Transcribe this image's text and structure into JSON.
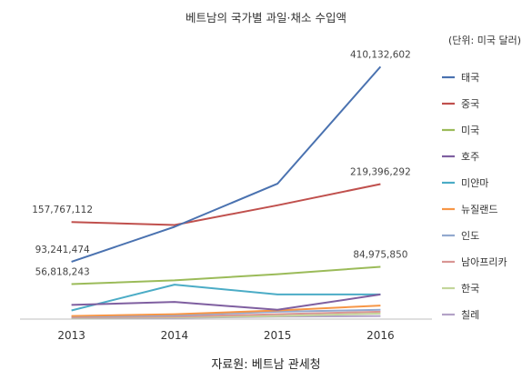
{
  "title": "베트남의 국가별 과일·채소 수입액",
  "unit_label": "(단위: 미국 달러)",
  "source_label": "자료원: 베트남 관세청",
  "chart_data": {
    "type": "line",
    "x": [
      "2013",
      "2014",
      "2015",
      "2016"
    ],
    "ylim": [
      0,
      430000000
    ],
    "grid": false,
    "legend_position": "right",
    "series": [
      {
        "name": "태국",
        "color": "#4a72b0",
        "values": [
          93241474,
          150000000,
          220000000,
          410132602
        ],
        "labels": [
          "93,241,474",
          null,
          null,
          "410,132,602"
        ]
      },
      {
        "name": "중국",
        "color": "#c0504d",
        "values": [
          157767112,
          153000000,
          185000000,
          219396292
        ],
        "labels": [
          "157,767,112",
          null,
          null,
          "219,396,292"
        ]
      },
      {
        "name": "미국",
        "color": "#9bbb59",
        "values": [
          56818243,
          63000000,
          73000000,
          84975850
        ],
        "labels": [
          "56,818,243",
          null,
          null,
          "84,975,850"
        ]
      },
      {
        "name": "호주",
        "color": "#7f5fa0",
        "values": [
          23000000,
          28000000,
          15000000,
          40000000
        ],
        "labels": [
          null,
          null,
          null,
          null
        ]
      },
      {
        "name": "미얀마",
        "color": "#4bacc6",
        "values": [
          14000000,
          56000000,
          40000000,
          40000000
        ],
        "labels": [
          null,
          null,
          null,
          null
        ]
      },
      {
        "name": "뉴질랜드",
        "color": "#f79646",
        "values": [
          5000000,
          8000000,
          14000000,
          22000000
        ],
        "labels": [
          null,
          null,
          null,
          null
        ]
      },
      {
        "name": "인도",
        "color": "#92a9cf",
        "values": [
          4000000,
          6000000,
          12000000,
          15000000
        ],
        "labels": [
          null,
          null,
          null,
          null
        ]
      },
      {
        "name": "남아프리카",
        "color": "#d99694",
        "values": [
          3000000,
          4000000,
          8000000,
          12000000
        ],
        "labels": [
          null,
          null,
          null,
          null
        ]
      },
      {
        "name": "한국",
        "color": "#c3d69b",
        "values": [
          2000000,
          3000000,
          5000000,
          9000000
        ],
        "labels": [
          null,
          null,
          null,
          null
        ]
      },
      {
        "name": "칠레",
        "color": "#b3a2c7",
        "values": [
          1500000,
          2000000,
          4000000,
          5000000
        ],
        "labels": [
          null,
          null,
          null,
          null
        ]
      }
    ]
  }
}
